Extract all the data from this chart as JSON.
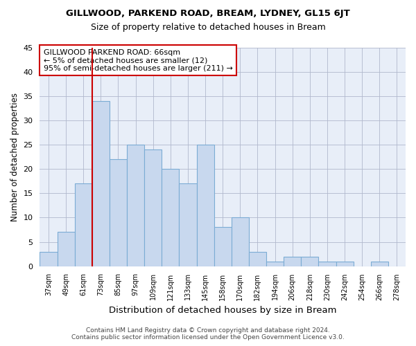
{
  "title1": "GILLWOOD, PARKEND ROAD, BREAM, LYDNEY, GL15 6JT",
  "title2": "Size of property relative to detached houses in Bream",
  "xlabel": "Distribution of detached houses by size in Bream",
  "ylabel": "Number of detached properties",
  "categories": [
    "37sqm",
    "49sqm",
    "61sqm",
    "73sqm",
    "85sqm",
    "97sqm",
    "109sqm",
    "121sqm",
    "133sqm",
    "145sqm",
    "158sqm",
    "170sqm",
    "182sqm",
    "194sqm",
    "206sqm",
    "218sqm",
    "230sqm",
    "242sqm",
    "254sqm",
    "266sqm",
    "278sqm"
  ],
  "values": [
    3,
    7,
    17,
    34,
    22,
    25,
    24,
    20,
    17,
    25,
    8,
    10,
    3,
    1,
    2,
    2,
    1,
    1,
    0,
    1,
    0
  ],
  "bar_color": "#c8d8ee",
  "bar_edge_color": "#7bacd4",
  "vline_color": "#cc0000",
  "vline_pos": 2.5,
  "annotation_text": "GILLWOOD PARKEND ROAD: 66sqm\n← 5% of detached houses are smaller (12)\n95% of semi-detached houses are larger (211) →",
  "annotation_box_color": "#ffffff",
  "annotation_box_edge": "#cc0000",
  "ylim": [
    0,
    45
  ],
  "yticks": [
    0,
    5,
    10,
    15,
    20,
    25,
    30,
    35,
    40,
    45
  ],
  "footer1": "Contains HM Land Registry data © Crown copyright and database right 2024.",
  "footer2": "Contains public sector information licensed under the Open Government Licence v3.0.",
  "bg_color": "#ffffff",
  "plot_bg_color": "#e8eef8"
}
